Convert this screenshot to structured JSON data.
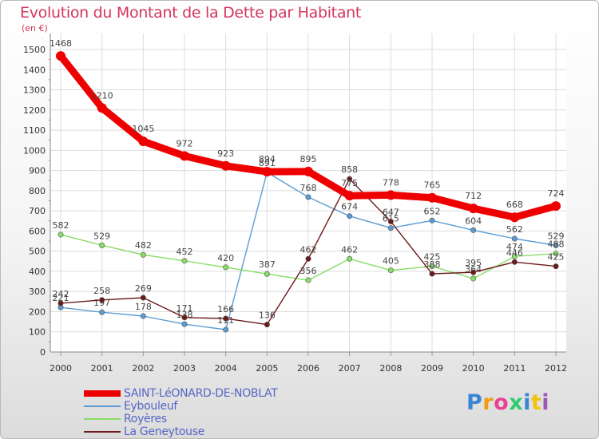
{
  "header": {
    "title": "Evolution du Montant de la Dette par Habitant",
    "unit": "(en €)"
  },
  "brand": {
    "logo_text": "Proxiti",
    "logo_colors": [
      "#3a86d6",
      "#f39c12",
      "#e84393",
      "#2ecc71",
      "#3a86d6",
      "#f1c40f",
      "#9b59b6"
    ]
  },
  "chart_data": {
    "type": "line",
    "title": "Evolution du Montant de la Dette par Habitant",
    "subtitle": "(en €)",
    "xlabel": "",
    "ylabel": "",
    "x": [
      "2000",
      "2001",
      "2002",
      "2003",
      "2004",
      "2005",
      "2006",
      "2007",
      "2008",
      "2009",
      "2010",
      "2011",
      "2012"
    ],
    "yticks": [
      0,
      100,
      200,
      300,
      400,
      500,
      600,
      700,
      800,
      900,
      1000,
      1100,
      1200,
      1300,
      1400,
      1500
    ],
    "ylim": [
      0,
      1500
    ],
    "grid": true,
    "legend_position": "bottom-left",
    "series": [
      {
        "name": "SAINT-LéONARD-DE-NOBLAT",
        "color": "#ee0000",
        "values": [
          1468,
          1210,
          1045,
          972,
          923,
          894,
          895,
          775,
          778,
          765,
          712,
          668,
          724
        ],
        "labels": [
          "1468",
          "1210",
          "1045",
          "972",
          "923",
          "894",
          "895",
          "775",
          "778",
          "765",
          "712",
          "668",
          "724"
        ]
      },
      {
        "name": "Eybouleuf",
        "color": "#5b9bd5",
        "values": [
          221,
          197,
          178,
          138,
          111,
          891,
          768,
          674,
          615,
          652,
          604,
          562,
          529
        ],
        "labels": [
          "221",
          "197",
          "178",
          "138",
          "111",
          "891",
          "768",
          "674",
          "615",
          "652",
          "604",
          "562",
          "529"
        ]
      },
      {
        "name": "Royères",
        "color": "#88dd66",
        "values": [
          582,
          529,
          482,
          452,
          420,
          387,
          356,
          462,
          405,
          425,
          364,
          474,
          488
        ],
        "labels": [
          "582",
          "529",
          "482",
          "452",
          "420",
          "387",
          "356",
          "462",
          "405",
          "425",
          "364",
          "474",
          "488"
        ]
      },
      {
        "name": "La Geneytouse",
        "color": "#6b1a1a",
        "values": [
          242,
          258,
          269,
          171,
          166,
          136,
          462,
          858,
          647,
          388,
          395,
          446,
          425
        ],
        "labels": [
          "242",
          "258",
          "269",
          "171",
          "166",
          "136",
          "462",
          "858",
          "647",
          "388",
          "395",
          "446",
          "425"
        ]
      }
    ]
  }
}
